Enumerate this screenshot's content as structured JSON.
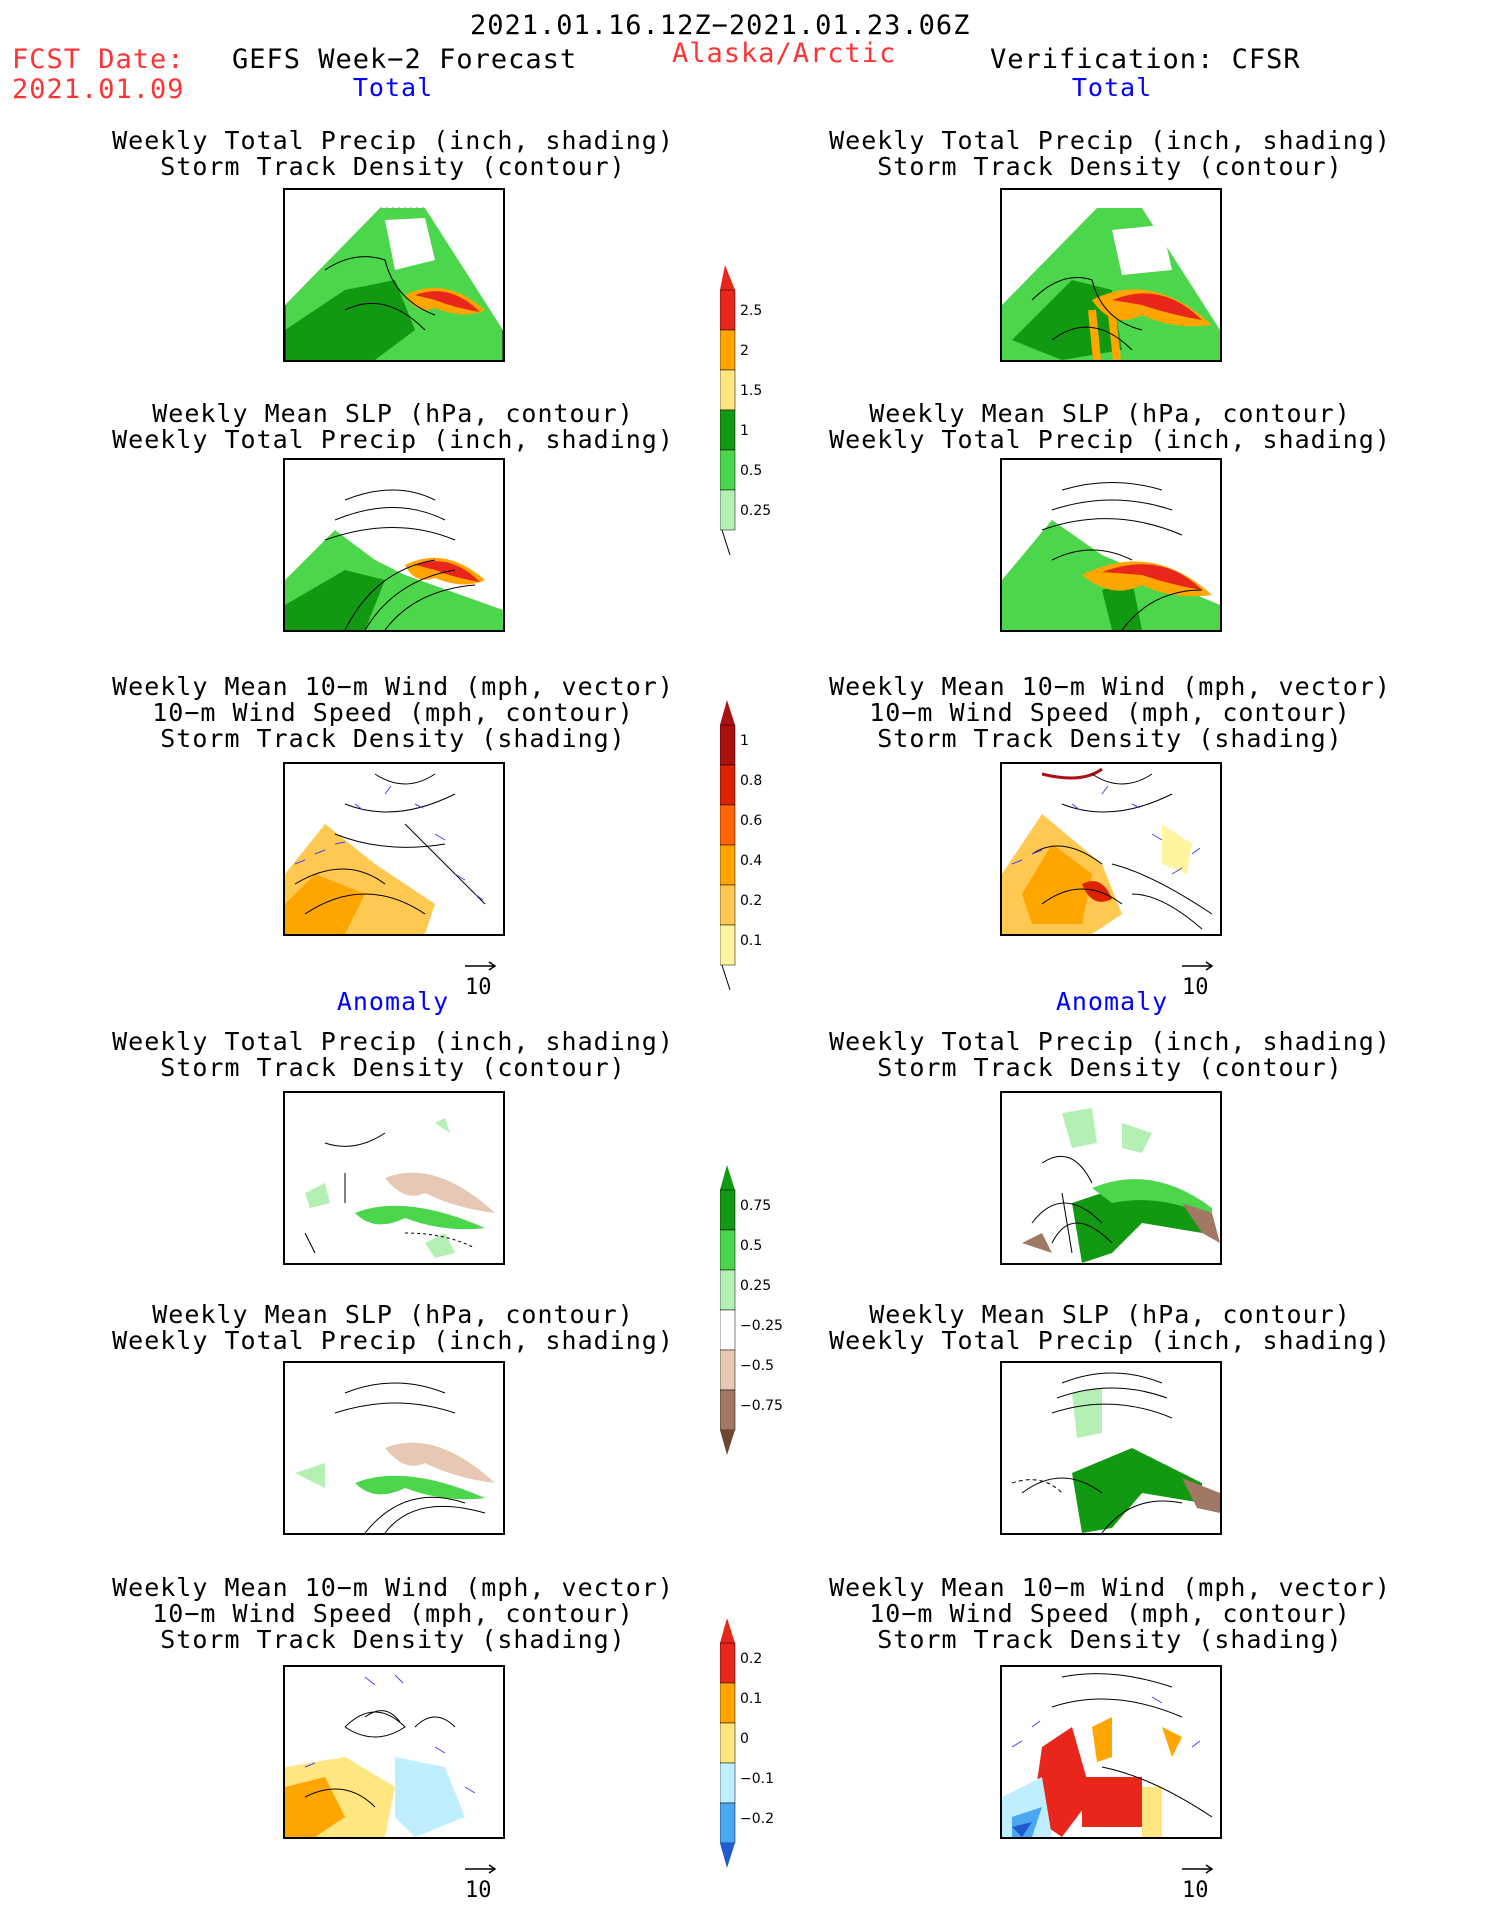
{
  "header": {
    "date_range": "2021.01.16.12Z−2021.01.23.06Z",
    "fcst_label": "FCST Date:",
    "fcst_date": "2021.01.09",
    "forecast_title": "GEFS Week−2 Forecast",
    "region": "Alaska/Arctic",
    "verification": "Verification: CFSR",
    "colors": {
      "red": "#ff3333",
      "blue": "#0000ff"
    }
  },
  "sections": {
    "total": "Total",
    "anomaly": "Anomaly"
  },
  "titles": {
    "precip_track": [
      "Weekly Total Precip (inch, shading)",
      "Storm Track Density (contour)"
    ],
    "slp_precip": [
      "Weekly Mean SLP (hPa, contour)",
      "Weekly Total Precip (inch, shading)"
    ],
    "wind_track": [
      "Weekly Mean 10−m Wind (mph, vector)",
      "10−m Wind Speed (mph, contour)",
      "Storm Track Density (shading)"
    ]
  },
  "vector_ref": "10",
  "colorbars": {
    "precip_total": {
      "labels": [
        "2.5",
        "2",
        "1.5",
        "1",
        "0.5",
        "0.25"
      ],
      "colors": [
        "#e8261c",
        "#ffa500",
        "#ffe680",
        "#119911",
        "#4cd64c",
        "#b4f0b4"
      ]
    },
    "track_total": {
      "labels": [
        "1",
        "0.8",
        "0.6",
        "0.4",
        "0.2",
        "0.1"
      ],
      "colors": [
        "#aa1111",
        "#dd2200",
        "#ff6600",
        "#ffa500",
        "#ffc850",
        "#fff5a0"
      ]
    },
    "precip_anom": {
      "labels": [
        "0.75",
        "0.5",
        "0.25",
        "−0.25",
        "−0.5",
        "−0.75"
      ],
      "colors": [
        "#119911",
        "#4cd64c",
        "#b4f0b4",
        "#ffffff",
        "#e6c8b4",
        "#a07864",
        "#6e4632"
      ]
    },
    "track_anom": {
      "labels": [
        "0.2",
        "0.1",
        "0",
        "−0.1",
        "−0.2"
      ],
      "colors": [
        "#e8261c",
        "#ffa500",
        "#ffe680",
        "#bfefff",
        "#4aa8f0",
        "#1e5ad2"
      ]
    }
  }
}
